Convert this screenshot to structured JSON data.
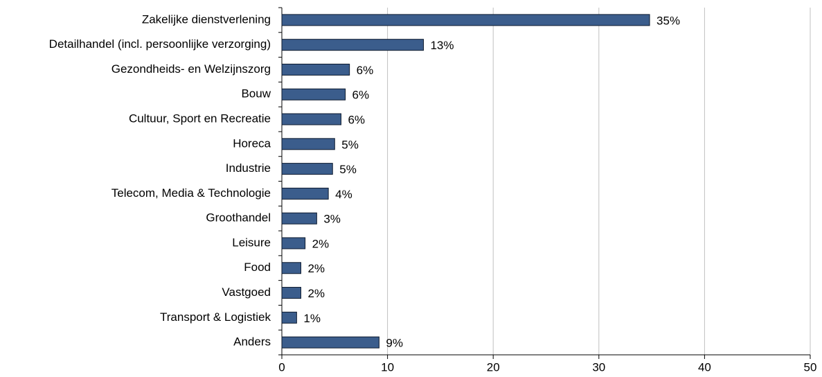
{
  "chart_data": {
    "type": "bar",
    "orientation": "horizontal",
    "categories": [
      "Zakelijke dienstverlening",
      "Detailhandel (incl. persoonlijke verzorging)",
      "Gezondheids- en Welzijnszorg",
      "Bouw",
      "Cultuur, Sport en Recreatie",
      "Horeca",
      "Industrie",
      "Telecom, Media & Technologie",
      "Groothandel",
      "Leisure",
      "Food",
      "Vastgoed",
      "Transport & Logistiek",
      "Anders"
    ],
    "values": [
      34.8,
      13.4,
      6.4,
      6.0,
      5.6,
      5.0,
      4.8,
      4.4,
      3.3,
      2.2,
      1.8,
      1.8,
      1.4,
      9.2
    ],
    "value_labels": [
      "35%",
      "13%",
      "6%",
      "6%",
      "6%",
      "5%",
      "5%",
      "4%",
      "3%",
      "2%",
      "2%",
      "2%",
      "1%",
      "9%"
    ],
    "color": "#3b5d8c",
    "xlim": [
      0,
      50
    ],
    "xticks": [
      0,
      10,
      20,
      30,
      40,
      50
    ],
    "grid": true
  }
}
